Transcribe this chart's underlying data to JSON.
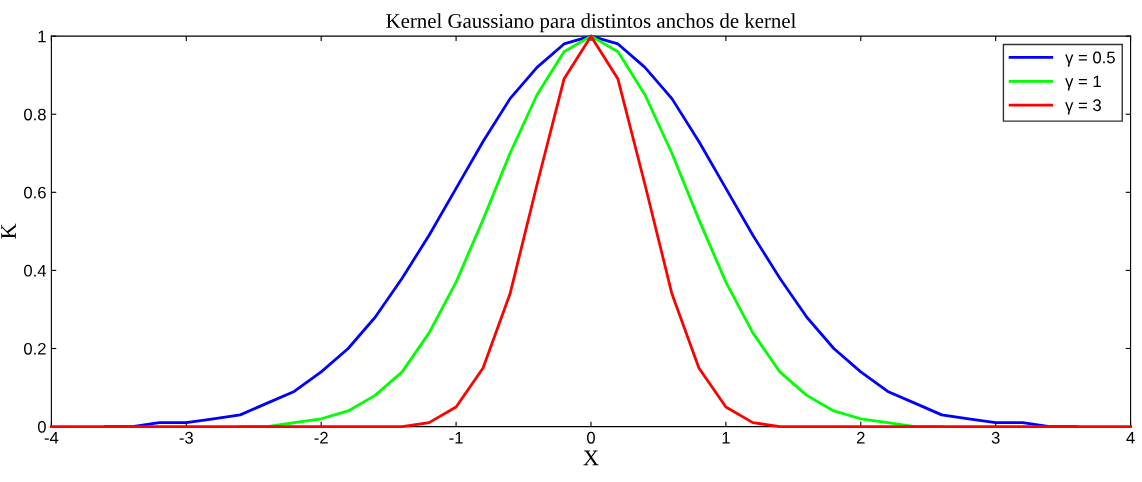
{
  "chart_data": {
    "type": "line",
    "title": "Kernel Gaussiano para distintos anchos de kernel",
    "xlabel": "X",
    "ylabel": "K",
    "x": [
      -4,
      -3.8,
      -3.6,
      -3.4,
      -3.2,
      -3,
      -2.8,
      -2.6,
      -2.4,
      -2.2,
      -2,
      -1.8,
      -1.6,
      -1.4,
      -1.2,
      -1,
      -0.8,
      -0.6,
      -0.4,
      -0.2,
      0,
      0.2,
      0.4,
      0.6,
      0.8,
      1,
      1.2,
      1.4,
      1.6,
      1.8,
      2,
      2.2,
      2.4,
      2.6,
      2.8,
      3,
      3.2,
      3.4,
      3.6,
      3.8,
      4
    ],
    "series": [
      {
        "name": "γ = 0.5",
        "color": "#0000ff",
        "values": [
          null,
          null,
          0,
          0,
          0.01,
          0.01,
          0.02,
          0.03,
          0.06,
          0.09,
          0.14,
          0.2,
          0.28,
          0.38,
          0.49,
          0.61,
          0.73,
          0.84,
          0.92,
          0.98,
          1,
          0.98,
          0.92,
          0.84,
          0.73,
          0.61,
          0.49,
          0.38,
          0.28,
          0.2,
          0.14,
          0.09,
          0.06,
          0.03,
          0.02,
          0.01,
          0.01,
          0,
          0,
          null,
          null
        ]
      },
      {
        "name": "γ = 1",
        "color": "#00ff00",
        "values": [
          null,
          null,
          null,
          null,
          null,
          null,
          null,
          0,
          0,
          0.01,
          0.02,
          0.04,
          0.08,
          0.14,
          0.24,
          0.37,
          0.53,
          0.7,
          0.85,
          0.96,
          1,
          0.96,
          0.85,
          0.7,
          0.53,
          0.37,
          0.24,
          0.14,
          0.08,
          0.04,
          0.02,
          0.01,
          0,
          0,
          null,
          null,
          null,
          null,
          null,
          null,
          null
        ]
      },
      {
        "name": "γ = 3",
        "color": "#ff0000",
        "values": [
          0,
          0,
          0,
          0,
          0,
          0,
          0,
          0,
          0,
          0,
          0,
          0,
          0,
          0,
          0.01,
          0.05,
          0.15,
          0.34,
          0.62,
          0.89,
          1,
          0.89,
          0.62,
          0.34,
          0.15,
          0.05,
          0.01,
          0,
          0,
          0,
          0,
          0,
          0,
          0,
          0,
          0,
          0,
          0,
          0,
          0,
          0
        ]
      }
    ],
    "xlim": [
      -4,
      4
    ],
    "xticks": [
      -4,
      -3,
      -2,
      -1,
      0,
      1,
      2,
      3,
      4
    ],
    "ylim": [
      0,
      1
    ],
    "yticks": [
      0,
      0.2,
      0.4,
      0.6,
      0.8,
      1
    ],
    "grid": false,
    "legend": "top right",
    "marker": "none",
    "line_style": "solid"
  }
}
